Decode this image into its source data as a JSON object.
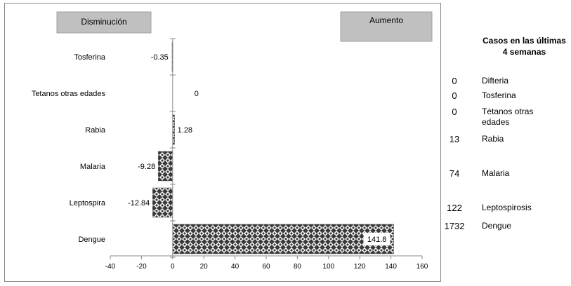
{
  "chart_data": {
    "type": "bar",
    "orientation": "horizontal",
    "categories": [
      "Tosferina",
      "Tetanos otras edades",
      "Rabia",
      "Malaria",
      "Leptospira",
      "Dengue"
    ],
    "values": [
      -0.35,
      0,
      1.28,
      -9.28,
      -12.84,
      141.8
    ],
    "value_labels": [
      "-0.35",
      "0",
      "1.28",
      "-9.28",
      "-12.84",
      "141.8"
    ],
    "xlim": [
      -40,
      160
    ],
    "xticks": [
      -40,
      -20,
      0,
      20,
      40,
      60,
      80,
      100,
      120,
      140,
      160
    ],
    "bar_pattern": "checkered",
    "bar_color": "#4a4a4a",
    "grid": false
  },
  "legend_boxes": {
    "decrease": "Disminución",
    "increase": "Aumento"
  },
  "side_table": {
    "title_line1": "Casos en las últimas",
    "title_line2": "4 semanas",
    "rows": [
      {
        "count": "0",
        "label_line1": "Difteria",
        "label_line2": ""
      },
      {
        "count": "0",
        "label_line1": "Tosferina",
        "label_line2": ""
      },
      {
        "count": "0",
        "label_line1": "Tétanos otras",
        "label_line2": "edades"
      },
      {
        "count": "13",
        "label_line1": "Rabia",
        "label_line2": ""
      },
      {
        "count": "74",
        "label_line1": "Malaria",
        "label_line2": ""
      },
      {
        "count": "122",
        "label_line1": "Leptospirosis",
        "label_line2": ""
      },
      {
        "count": "1732",
        "label_line1": "Dengue",
        "label_line2": ""
      }
    ]
  }
}
